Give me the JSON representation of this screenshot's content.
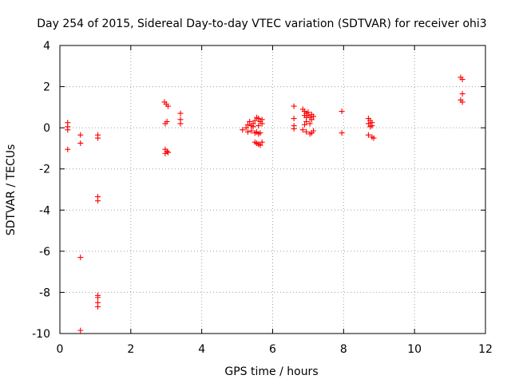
{
  "chart_data": {
    "type": "scatter",
    "title": "Day 254 of 2015, Sidereal Day-to-day VTEC variation (SDTVAR) for receiver ohi3",
    "xlabel": "GPS time / hours",
    "ylabel": "SDTVAR / TECUs",
    "xlim": [
      0,
      12
    ],
    "ylim": [
      -10,
      4
    ],
    "xticks": [
      "0",
      "2",
      "4",
      "6",
      "8",
      "10",
      "12"
    ],
    "yticks": [
      "4",
      "2",
      "0",
      "-2",
      "-4",
      "-6",
      "-8",
      "-10"
    ],
    "grid": true,
    "marker": "+",
    "marker_color": "#ff0000",
    "series": [
      {
        "name": "SDTVAR",
        "points": [
          [
            0.22,
            0.25
          ],
          [
            0.22,
            0.05
          ],
          [
            0.22,
            -0.1
          ],
          [
            0.22,
            -1.05
          ],
          [
            0.58,
            -0.35
          ],
          [
            0.58,
            -0.75
          ],
          [
            0.58,
            -6.3
          ],
          [
            0.58,
            -9.85
          ],
          [
            1.07,
            -0.35
          ],
          [
            1.07,
            -0.5
          ],
          [
            1.07,
            -3.35
          ],
          [
            1.07,
            -3.55
          ],
          [
            1.07,
            -8.15
          ],
          [
            1.07,
            -8.25
          ],
          [
            1.07,
            -8.5
          ],
          [
            1.07,
            -8.7
          ],
          [
            2.95,
            1.25
          ],
          [
            3.0,
            1.15
          ],
          [
            3.05,
            1.05
          ],
          [
            2.97,
            0.2
          ],
          [
            3.02,
            0.3
          ],
          [
            2.97,
            -1.05
          ],
          [
            3.02,
            -1.15
          ],
          [
            3.05,
            -1.2
          ],
          [
            2.97,
            -1.25
          ],
          [
            3.4,
            0.7
          ],
          [
            3.4,
            0.4
          ],
          [
            3.4,
            0.2
          ],
          [
            5.15,
            -0.1
          ],
          [
            5.25,
            0.0
          ],
          [
            5.3,
            0.15
          ],
          [
            5.35,
            0.3
          ],
          [
            5.4,
            0.1
          ],
          [
            5.3,
            -0.2
          ],
          [
            5.4,
            -0.15
          ],
          [
            5.45,
            0.2
          ],
          [
            5.5,
            0.35
          ],
          [
            5.55,
            0.5
          ],
          [
            5.6,
            0.45
          ],
          [
            5.65,
            0.3
          ],
          [
            5.7,
            0.4
          ],
          [
            5.5,
            -0.25
          ],
          [
            5.55,
            -0.2
          ],
          [
            5.6,
            -0.3
          ],
          [
            5.65,
            -0.25
          ],
          [
            5.5,
            -0.7
          ],
          [
            5.55,
            -0.75
          ],
          [
            5.6,
            -0.8
          ],
          [
            5.65,
            -0.85
          ],
          [
            5.7,
            -0.7
          ],
          [
            5.45,
            0.05
          ],
          [
            5.6,
            0.1
          ],
          [
            5.7,
            0.2
          ],
          [
            6.6,
            1.05
          ],
          [
            6.6,
            0.45
          ],
          [
            6.6,
            0.1
          ],
          [
            6.6,
            -0.05
          ],
          [
            6.85,
            0.9
          ],
          [
            6.9,
            0.8
          ],
          [
            6.95,
            0.7
          ],
          [
            7.0,
            0.6
          ],
          [
            7.05,
            0.5
          ],
          [
            7.1,
            0.4
          ],
          [
            6.9,
            0.6
          ],
          [
            7.0,
            0.75
          ],
          [
            7.1,
            0.65
          ],
          [
            6.95,
            0.3
          ],
          [
            7.05,
            0.2
          ],
          [
            6.9,
            0.15
          ],
          [
            6.95,
            0.5
          ],
          [
            7.15,
            0.55
          ],
          [
            6.85,
            -0.1
          ],
          [
            6.95,
            -0.2
          ],
          [
            7.05,
            -0.3
          ],
          [
            7.1,
            -0.25
          ],
          [
            7.15,
            -0.15
          ],
          [
            7.95,
            0.8
          ],
          [
            7.95,
            -0.25
          ],
          [
            8.7,
            0.45
          ],
          [
            8.75,
            0.35
          ],
          [
            8.8,
            0.25
          ],
          [
            8.7,
            0.2
          ],
          [
            8.8,
            0.1
          ],
          [
            8.75,
            0.05
          ],
          [
            8.7,
            -0.35
          ],
          [
            8.8,
            -0.45
          ],
          [
            8.85,
            -0.5
          ],
          [
            11.3,
            2.45
          ],
          [
            11.35,
            2.35
          ],
          [
            11.35,
            1.65
          ],
          [
            11.3,
            1.35
          ],
          [
            11.35,
            1.25
          ]
        ]
      }
    ]
  }
}
